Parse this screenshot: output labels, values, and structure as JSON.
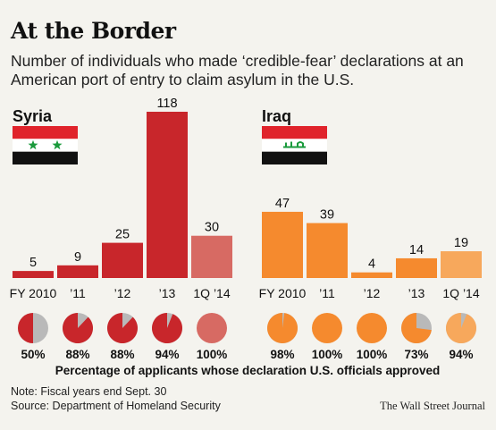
{
  "title": "At the Border",
  "subtitle": "Number of individuals who made ‘credible-fear’ declarations at an American port of entry to claim asylum in the U.S.",
  "approval_caption": "Percentage of applicants whose declaration U.S. officials approved",
  "note": "Note: Fiscal years end Sept. 30",
  "source": "Source: Department of Homeland Security",
  "credit": "The Wall Street Journal",
  "colors": {
    "syria_bar": "#c8262b",
    "syria_bar_latest": "#d76a63",
    "iraq_bar": "#f58a2e",
    "iraq_bar_latest": "#f7a85c",
    "pie_remainder": "#b9b9b9",
    "background": "#f4f3ee"
  },
  "chart_data": [
    {
      "type": "bar",
      "panel": "Syria",
      "flag_icon": "syria-flag-icon",
      "categories": [
        "FY 2010",
        "’11",
        "’12",
        "’13",
        "1Q ’14"
      ],
      "values": [
        5,
        9,
        25,
        118,
        30
      ],
      "approval_pct": [
        50,
        88,
        88,
        94,
        100
      ],
      "approval_labels": [
        "50%",
        "88%",
        "88%",
        "94%",
        "100%"
      ],
      "ylim": [
        0,
        118
      ]
    },
    {
      "type": "bar",
      "panel": "Iraq",
      "flag_icon": "iraq-flag-icon",
      "categories": [
        "FY 2010",
        "’11",
        "’12",
        "’13",
        "1Q ’14"
      ],
      "values": [
        47,
        39,
        4,
        14,
        19
      ],
      "approval_pct": [
        98,
        100,
        100,
        73,
        94
      ],
      "approval_labels": [
        "98%",
        "100%",
        "100%",
        "73%",
        "94%"
      ],
      "ylim": [
        0,
        118
      ]
    }
  ]
}
